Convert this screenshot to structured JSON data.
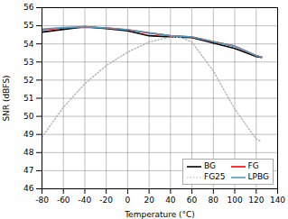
{
  "chart_data": {
    "type": "line",
    "xlabel": "Temperature (°C)",
    "ylabel": "SNR (dBFS)",
    "xlim": [
      -80,
      140
    ],
    "ylim": [
      46,
      56
    ],
    "xticks": [
      -80,
      -60,
      -40,
      -20,
      0,
      20,
      40,
      60,
      80,
      100,
      120,
      140
    ],
    "yticks": [
      46,
      47,
      48,
      49,
      50,
      51,
      52,
      53,
      54,
      55,
      56
    ],
    "grid": true,
    "legend": "lower right",
    "series": [
      {
        "name": "BG",
        "color": "#000000",
        "line_style": "solid",
        "x": [
          -80,
          -60,
          -40,
          -20,
          0,
          20,
          40,
          60,
          80,
          100,
          120,
          125
        ],
        "values": [
          54.65,
          54.8,
          54.95,
          54.85,
          54.72,
          54.45,
          54.38,
          54.35,
          54.05,
          53.75,
          53.3,
          53.25
        ]
      },
      {
        "name": "FG",
        "color": "#ff0000",
        "line_style": "solid",
        "x": [
          -80,
          -60,
          -40,
          -20,
          0,
          20,
          40,
          60,
          80,
          100,
          120,
          125
        ],
        "values": [
          54.78,
          54.88,
          54.92,
          54.88,
          54.78,
          54.6,
          54.45,
          54.38,
          54.12,
          53.88,
          53.35,
          53.28
        ]
      },
      {
        "name": "FG25",
        "color": "#aaaaaa",
        "line_style": "dotted",
        "x": [
          -80,
          -60,
          -40,
          -20,
          0,
          20,
          40,
          50,
          60,
          80,
          100,
          120,
          125
        ],
        "values": [
          48.85,
          50.5,
          51.8,
          52.8,
          53.55,
          54.1,
          54.38,
          54.35,
          54.1,
          52.5,
          50.4,
          48.75,
          48.6
        ]
      },
      {
        "name": "LPBG",
        "color": "#5599bb",
        "line_style": "solid",
        "x": [
          -80,
          -60,
          -40,
          -20,
          0,
          20,
          40,
          60,
          80,
          100,
          120,
          125
        ],
        "values": [
          54.82,
          54.9,
          54.95,
          54.88,
          54.78,
          54.62,
          54.45,
          54.38,
          54.12,
          53.88,
          53.35,
          53.28
        ]
      }
    ]
  }
}
